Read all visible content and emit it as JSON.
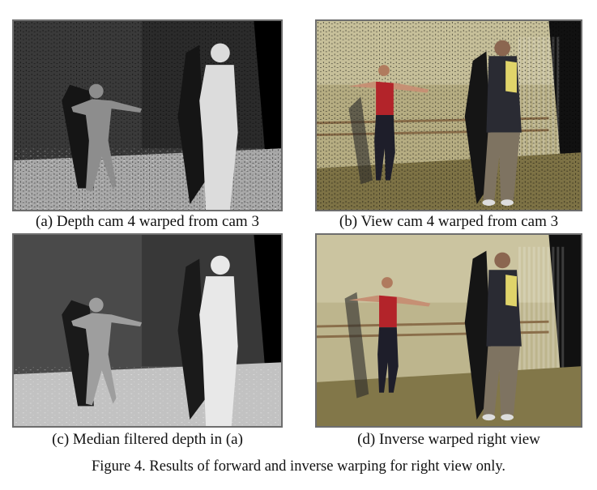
{
  "panels": [
    {
      "caption": "(a)  Depth cam 4 warped from cam 3",
      "kind": "depth-warped"
    },
    {
      "caption": "(b) View cam 4 warped from cam 3",
      "kind": "color-warped"
    },
    {
      "caption": "(c) Median filtered depth in (a)",
      "kind": "depth-filtered"
    },
    {
      "caption": "(d) Inverse warped right view",
      "kind": "color-inverse"
    }
  ],
  "figure_caption": "Figure 4.    Results of forward and inverse warping for right view only."
}
